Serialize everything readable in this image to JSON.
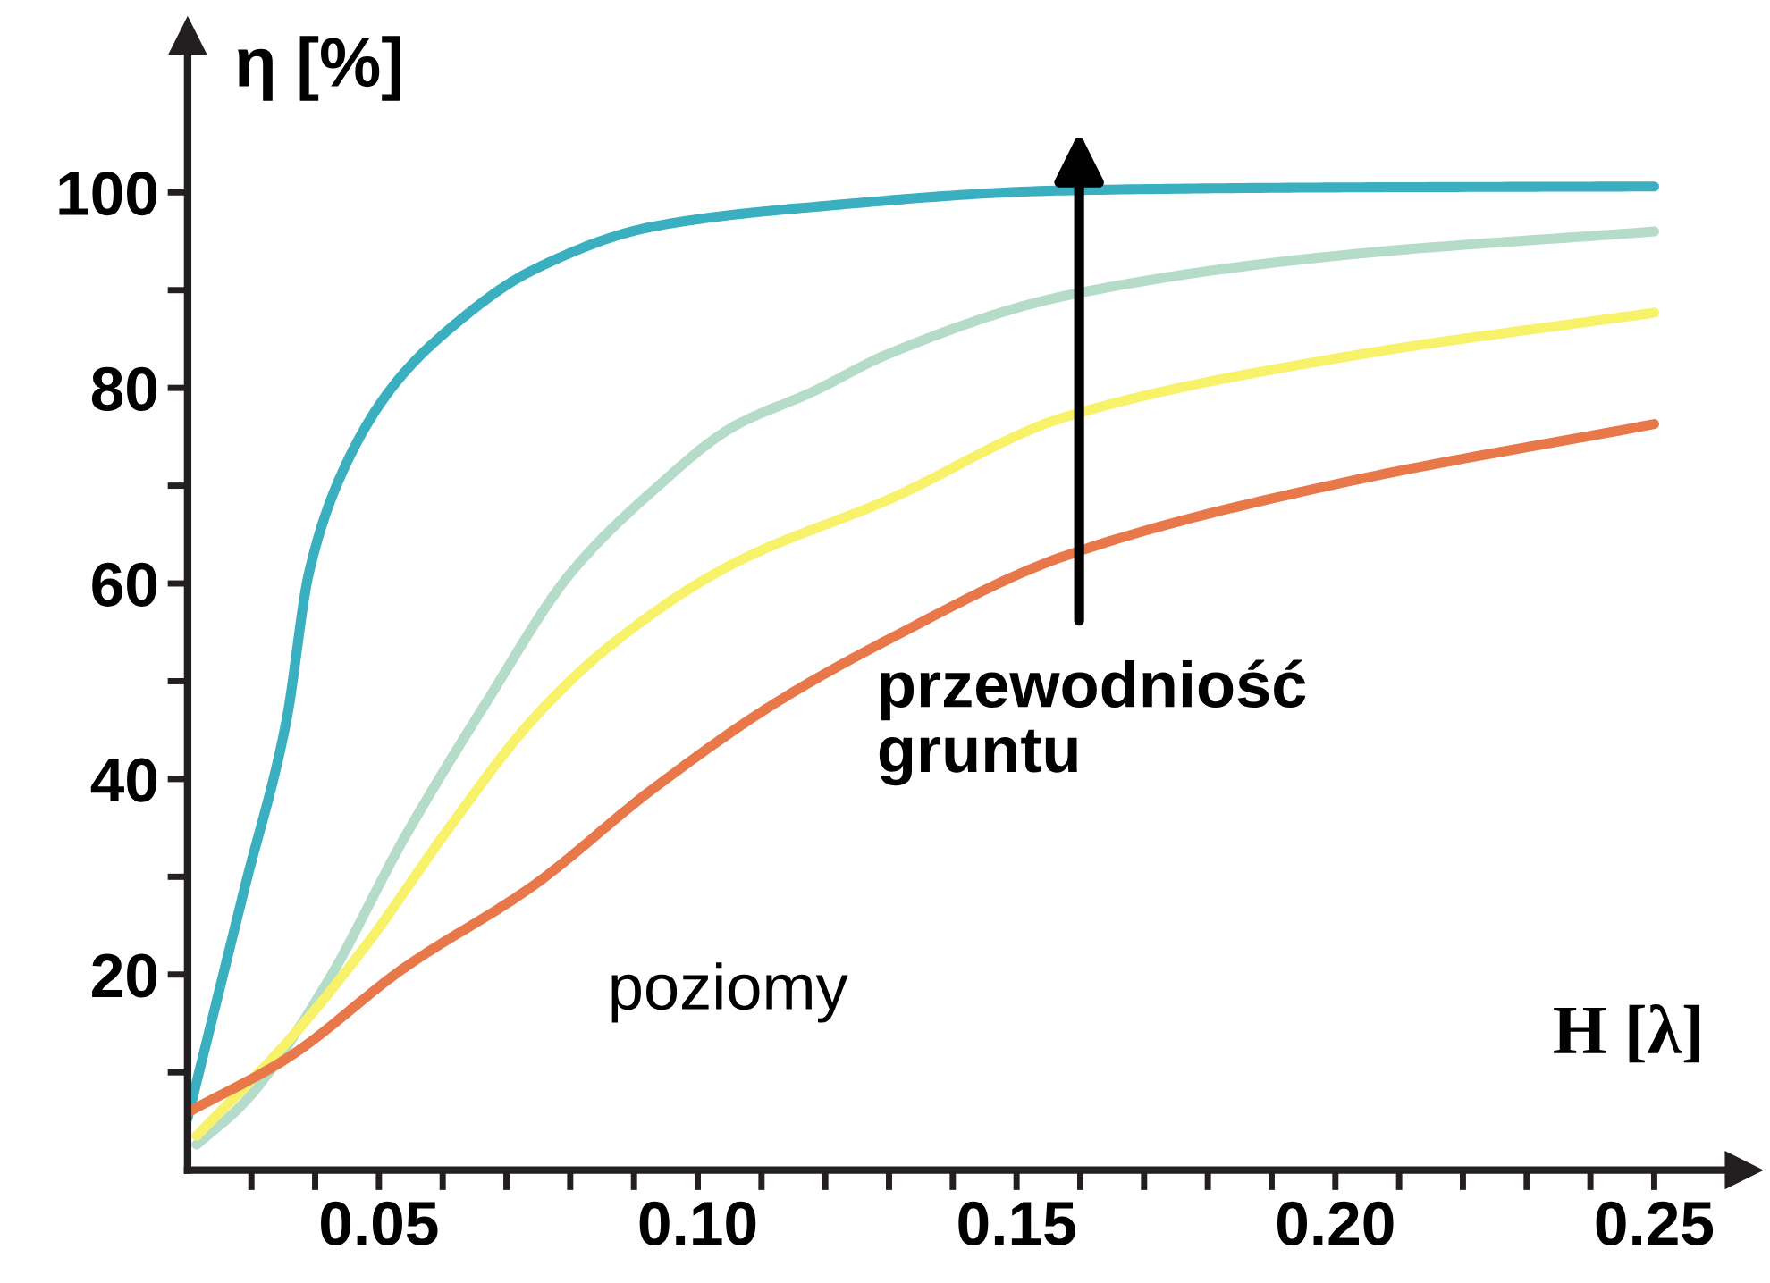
{
  "chart_data": {
    "type": "line",
    "xlabel": "H [λ]",
    "ylabel": "η [%]",
    "xlim": [
      0.02,
      0.264
    ],
    "ylim": [
      0,
      116
    ],
    "xticks": [
      {
        "value": 0.03,
        "label": null
      },
      {
        "value": 0.04,
        "label": null
      },
      {
        "value": 0.05,
        "label": "0.05"
      },
      {
        "value": 0.06,
        "label": null
      },
      {
        "value": 0.07,
        "label": null
      },
      {
        "value": 0.08,
        "label": null
      },
      {
        "value": 0.09,
        "label": null
      },
      {
        "value": 0.1,
        "label": "0.10"
      },
      {
        "value": 0.11,
        "label": null
      },
      {
        "value": 0.12,
        "label": null
      },
      {
        "value": 0.13,
        "label": null
      },
      {
        "value": 0.14,
        "label": null
      },
      {
        "value": 0.15,
        "label": "0.15"
      },
      {
        "value": 0.16,
        "label": null
      },
      {
        "value": 0.17,
        "label": null
      },
      {
        "value": 0.18,
        "label": null
      },
      {
        "value": 0.19,
        "label": null
      },
      {
        "value": 0.2,
        "label": "0.20"
      },
      {
        "value": 0.21,
        "label": null
      },
      {
        "value": 0.22,
        "label": null
      },
      {
        "value": 0.23,
        "label": null
      },
      {
        "value": 0.24,
        "label": null
      },
      {
        "value": 0.25,
        "label": "0.25"
      }
    ],
    "yticks": [
      {
        "value": 10,
        "label": null
      },
      20,
      {
        "value": 30,
        "label": null
      },
      40,
      {
        "value": 50,
        "label": null
      },
      60,
      {
        "value": 70,
        "label": null
      },
      80,
      {
        "value": 90,
        "label": null
      },
      100
    ],
    "grid": false,
    "legend": false,
    "marker": "none",
    "line_style": "solid",
    "series": [
      {
        "color": "#39afc0",
        "x": [
          0.02,
          0.029,
          0.0355,
          0.039,
          0.044,
          0.052,
          0.061,
          0.074,
          0.093,
          0.118,
          0.1575,
          0.2,
          0.25
        ],
        "values": [
          5.3,
          29,
          46,
          61,
          71,
          80,
          86,
          92,
          96.5,
          98.5,
          100.2,
          100.5,
          100.6
        ]
      },
      {
        "color": "#b5dcc8",
        "x": [
          0.0214,
          0.029,
          0.0417,
          0.054,
          0.067,
          0.08,
          0.093,
          0.1055,
          0.118,
          0.13,
          0.1575,
          0.2,
          0.25
        ],
        "values": [
          2.6,
          7,
          19,
          34,
          48,
          61,
          69.5,
          76,
          79.6,
          83.5,
          89.4,
          93.5,
          96
        ]
      },
      {
        "color": "#f7f26a",
        "x": [
          0.0214,
          0.0355,
          0.048,
          0.061,
          0.074,
          0.086,
          0.1055,
          0.13,
          0.1575,
          0.2,
          0.25
        ],
        "values": [
          3.5,
          13,
          23,
          35,
          46,
          53.5,
          62,
          68.6,
          77,
          83,
          87.7
        ]
      },
      {
        "color": "#e8774a",
        "x": [
          0.02,
          0.0355,
          0.054,
          0.074,
          0.093,
          0.112,
          0.13,
          0.1575,
          0.199,
          0.25
        ],
        "values": [
          5.9,
          11.4,
          20.7,
          29,
          39,
          47.7,
          54.3,
          62.8,
          70,
          76.3
        ]
      }
    ],
    "annotations": [
      "przewodniość\ngruntu",
      "poziomy"
    ]
  }
}
